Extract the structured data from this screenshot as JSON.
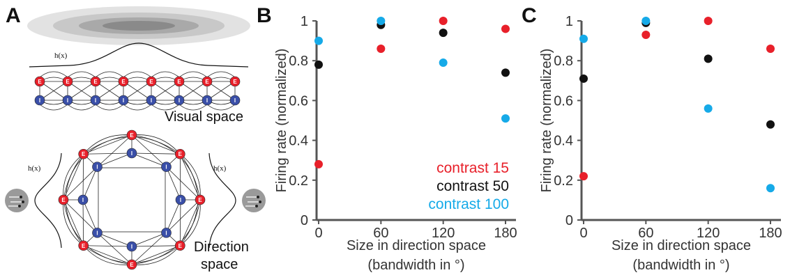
{
  "panels": {
    "a": {
      "letter": "A"
    },
    "b": {
      "letter": "B"
    },
    "c": {
      "letter": "C"
    }
  },
  "diagram": {
    "hx_label": "h(x)",
    "visual_space_label": "Visual space",
    "direction_space_label_1": "Direction",
    "direction_space_label_2": "space",
    "excitatory_label": "E",
    "inhibitory_label": "I",
    "colors": {
      "excitatory": "#e8202a",
      "inhibitory": "#3a4fa8",
      "blob": "#888888"
    }
  },
  "chart_data": [
    {
      "type": "scatter",
      "panel": "B",
      "xlabel_line1": "Size in direction space",
      "xlabel_line2": "(bandwidth in °)",
      "ylabel": "Firing rate (normalized)",
      "xlim": [
        0,
        180
      ],
      "ylim": [
        0,
        1
      ],
      "xticks": [
        "0",
        "60",
        "120",
        "180"
      ],
      "yticks": [
        "0",
        "0.2",
        "0.4",
        "0.6",
        "0.8",
        "1"
      ],
      "legend_position": "bottom-right",
      "series": [
        {
          "name": "contrast 15",
          "color": "#e8202a",
          "x": [
            0,
            60,
            120,
            180
          ],
          "y": [
            0.28,
            0.86,
            1.0,
            0.96
          ]
        },
        {
          "name": "contrast 50",
          "color": "#111111",
          "x": [
            0,
            60,
            120,
            180
          ],
          "y": [
            0.78,
            0.98,
            0.94,
            0.74
          ]
        },
        {
          "name": "contrast 100",
          "color": "#16aae8",
          "x": [
            0,
            60,
            120,
            180
          ],
          "y": [
            0.9,
            1.0,
            0.79,
            0.51
          ]
        }
      ]
    },
    {
      "type": "scatter",
      "panel": "C",
      "xlabel_line1": "Size in direction space",
      "xlabel_line2": "(bandwidth in °)",
      "ylabel": "Firing rate (normalized)",
      "xlim": [
        0,
        180
      ],
      "ylim": [
        0,
        1
      ],
      "xticks": [
        "0",
        "60",
        "120",
        "180"
      ],
      "yticks": [
        "0",
        "0.2",
        "0.4",
        "0.6",
        "0.8",
        "1"
      ],
      "series": [
        {
          "name": "contrast 15",
          "color": "#e8202a",
          "x": [
            0,
            60,
            120,
            180
          ],
          "y": [
            0.22,
            0.93,
            1.0,
            0.86
          ]
        },
        {
          "name": "contrast 50",
          "color": "#111111",
          "x": [
            0,
            60,
            120,
            180
          ],
          "y": [
            0.71,
            0.99,
            0.81,
            0.48
          ]
        },
        {
          "name": "contrast 100",
          "color": "#16aae8",
          "x": [
            0,
            60,
            120,
            180
          ],
          "y": [
            0.91,
            1.0,
            0.56,
            0.16
          ]
        }
      ]
    }
  ]
}
